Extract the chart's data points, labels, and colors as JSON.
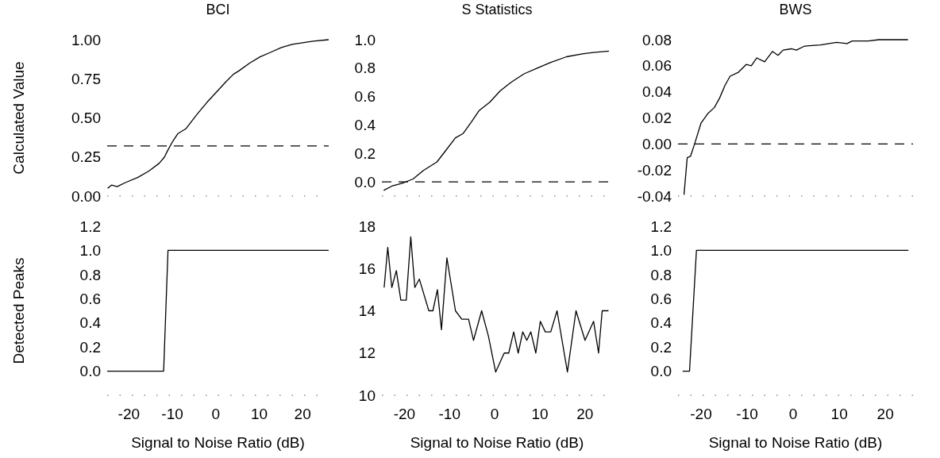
{
  "chart_data": [
    {
      "type": "line",
      "title": "BCI",
      "ylabel": "Calculated Value",
      "xlim": [
        -25,
        26
      ],
      "xticks": [
        -20,
        -10,
        0,
        10,
        20
      ],
      "ylim": [
        0,
        1
      ],
      "yticks": [
        {
          "value": 0,
          "label": "0.00"
        },
        {
          "value": 0.25,
          "label": "0.25"
        },
        {
          "value": 0.5,
          "label": "0.50"
        },
        {
          "value": 0.75,
          "label": "0.75"
        },
        {
          "value": 1,
          "label": "1.00"
        }
      ],
      "tick_labels": "y",
      "ref_lines": [
        {
          "axis": "y",
          "value": 0.32,
          "line_style": "dashed",
          "color": "#000000"
        }
      ],
      "series": [
        {
          "type": "line",
          "color": "#000000",
          "x": [
            -24.9,
            -24,
            -22.7,
            -20.9,
            -17.9,
            -15.4,
            -13,
            -11.8,
            -11.1,
            -9.9,
            -8.7,
            -6.9,
            -4.4,
            -2,
            0.5,
            2.3,
            4.1,
            5.3,
            7.8,
            10.2,
            12.7,
            15.1,
            17.6,
            20,
            22.4,
            26
          ],
          "values": [
            0.05,
            0.07,
            0.06,
            0.085,
            0.12,
            0.16,
            0.21,
            0.25,
            0.29,
            0.35,
            0.4,
            0.43,
            0.52,
            0.6,
            0.675,
            0.73,
            0.78,
            0.8,
            0.85,
            0.89,
            0.92,
            0.95,
            0.97,
            0.98,
            0.99,
            1
          ]
        }
      ]
    },
    {
      "type": "line",
      "title": "S Statistics",
      "xlim": [
        -25,
        26
      ],
      "xticks": [
        -20,
        -10,
        0,
        10,
        20
      ],
      "ylim": [
        -0.1,
        1
      ],
      "yticks": [
        {
          "value": 0,
          "label": "0.0"
        },
        {
          "value": 0.2,
          "label": "0.2"
        },
        {
          "value": 0.4,
          "label": "0.4"
        },
        {
          "value": 0.6,
          "label": "0.6"
        },
        {
          "value": 0.8,
          "label": "0.8"
        },
        {
          "value": 1,
          "label": "1.0"
        }
      ],
      "tick_labels": "y",
      "ref_lines": [
        {
          "axis": "y",
          "value": 0,
          "line_style": "dashed",
          "color": "#000000"
        }
      ],
      "series": [
        {
          "type": "line",
          "color": "#000000",
          "x": [
            -24.6,
            -22.8,
            -20.5,
            -18.1,
            -15.8,
            -12.8,
            -11.1,
            -8.7,
            -7,
            -5.2,
            -3.5,
            -1.1,
            1.2,
            3.6,
            6.5,
            9.4,
            12.4,
            15.9,
            19.4,
            21.8,
            25.3
          ],
          "values": [
            -0.06,
            -0.03,
            -0.01,
            0.02,
            0.08,
            0.14,
            0.21,
            0.31,
            0.34,
            0.42,
            0.5,
            0.56,
            0.64,
            0.7,
            0.76,
            0.8,
            0.84,
            0.88,
            0.9,
            0.91,
            0.92
          ]
        }
      ]
    },
    {
      "type": "line",
      "title": "BWS",
      "xlim": [
        -25,
        26
      ],
      "xticks": [
        -20,
        -10,
        0,
        10,
        20
      ],
      "ylim": [
        -0.04,
        0.08
      ],
      "yticks": [
        {
          "value": -0.04,
          "label": "-0.04"
        },
        {
          "value": -0.02,
          "label": "-0.02"
        },
        {
          "value": 0,
          "label": "0.00"
        },
        {
          "value": 0.02,
          "label": "0.02"
        },
        {
          "value": 0.04,
          "label": "0.04"
        },
        {
          "value": 0.06,
          "label": "0.06"
        },
        {
          "value": 0.08,
          "label": "0.08"
        }
      ],
      "tick_labels": "y",
      "ref_lines": [
        {
          "axis": "y",
          "value": 0,
          "line_style": "dashed",
          "color": "#000000"
        }
      ],
      "series": [
        {
          "type": "line",
          "color": "#000000",
          "x": [
            -23.7,
            -23,
            -22.3,
            -21.4,
            -20,
            -18.6,
            -17.1,
            -16,
            -14.8,
            -13.7,
            -11.9,
            -10.2,
            -9.1,
            -7.9,
            -6.2,
            -4.5,
            -3.3,
            -2.2,
            -0.4,
            0.7,
            2.4,
            5.9,
            9.4,
            11.7,
            12.8,
            16.3,
            18.6,
            24.9
          ],
          "values": [
            -0.039,
            -0.0105,
            -0.0095,
            0,
            0.016,
            0.023,
            0.028,
            0.035,
            0.045,
            0.052,
            0.055,
            0.061,
            0.06,
            0.066,
            0.063,
            0.071,
            0.068,
            0.072,
            0.073,
            0.072,
            0.075,
            0.076,
            0.078,
            0.077,
            0.079,
            0.079,
            0.08,
            0.08
          ]
        }
      ]
    },
    {
      "type": "line",
      "ylabel": "Detected Peaks",
      "xlabel": "Signal to Noise Ratio (dB)",
      "xlim": [
        -25,
        26
      ],
      "xticks": [
        -20,
        -10,
        0,
        10,
        20
      ],
      "ylim": [
        -0.2,
        1.2
      ],
      "yticks": [
        {
          "value": 0,
          "label": "0.0"
        },
        {
          "value": 0.2,
          "label": "0.2"
        },
        {
          "value": 0.4,
          "label": "0.4"
        },
        {
          "value": 0.6,
          "label": "0.6"
        },
        {
          "value": 0.8,
          "label": "0.8"
        },
        {
          "value": 1,
          "label": "1.0"
        },
        {
          "value": 1.2,
          "label": "1.2"
        }
      ],
      "series": [
        {
          "type": "line",
          "color": "#000000",
          "x": [
            -25,
            -12,
            -11,
            26
          ],
          "values": [
            0,
            0,
            1,
            1
          ]
        }
      ]
    },
    {
      "type": "line",
      "xlabel": "Signal to Noise Ratio (dB)",
      "xlim": [
        -25,
        26
      ],
      "xticks": [
        -20,
        -10,
        0,
        10,
        20
      ],
      "ylim": [
        10,
        18
      ],
      "yticks": [
        10,
        12,
        14,
        16,
        18
      ],
      "series": [
        {
          "type": "line",
          "color": "#000000",
          "x": [
            -24.5,
            -23.7,
            -22.8,
            -21.8,
            -20.8,
            -19.6,
            -18.6,
            -17.7,
            -16.7,
            -14.6,
            -13.7,
            -12.7,
            -11.8,
            -10.6,
            -8.7,
            -7.3,
            -5.8,
            -4.7,
            -2.9,
            -1.4,
            0.2,
            2.1,
            3.1,
            4.2,
            5.2,
            6.2,
            7.1,
            8,
            9.1,
            10.1,
            11.2,
            12.4,
            13.8,
            16.1,
            18,
            20,
            21.9,
            23,
            23.8,
            25.2
          ],
          "values": [
            15.1,
            17,
            15.1,
            15.9,
            14.5,
            14.5,
            17.5,
            15.1,
            15.5,
            14,
            14,
            15,
            13.1,
            16.5,
            14,
            13.6,
            13.6,
            12.6,
            14,
            12.8,
            11.1,
            12,
            12,
            13,
            12,
            13,
            12.6,
            13,
            12,
            13.5,
            13,
            13,
            14,
            11.1,
            14,
            12.6,
            13.5,
            12,
            14,
            14
          ]
        }
      ]
    },
    {
      "type": "line",
      "xlabel": "Signal to Noise Ratio (dB)",
      "xlim": [
        -25,
        26
      ],
      "xticks": [
        -20,
        -10,
        0,
        10,
        20
      ],
      "ylim": [
        -0.2,
        1.2
      ],
      "yticks": [
        {
          "value": 0,
          "label": "0.0"
        },
        {
          "value": 0.2,
          "label": "0.2"
        },
        {
          "value": 0.4,
          "label": "0.4"
        },
        {
          "value": 0.6,
          "label": "0.6"
        },
        {
          "value": 0.8,
          "label": "0.8"
        },
        {
          "value": 1,
          "label": "1.0"
        },
        {
          "value": 1.2,
          "label": "1.2"
        }
      ],
      "series": [
        {
          "type": "line",
          "color": "#000000",
          "x": [
            -24,
            -22.5,
            -21,
            25
          ],
          "values": [
            0,
            0,
            1,
            1
          ]
        }
      ]
    }
  ]
}
